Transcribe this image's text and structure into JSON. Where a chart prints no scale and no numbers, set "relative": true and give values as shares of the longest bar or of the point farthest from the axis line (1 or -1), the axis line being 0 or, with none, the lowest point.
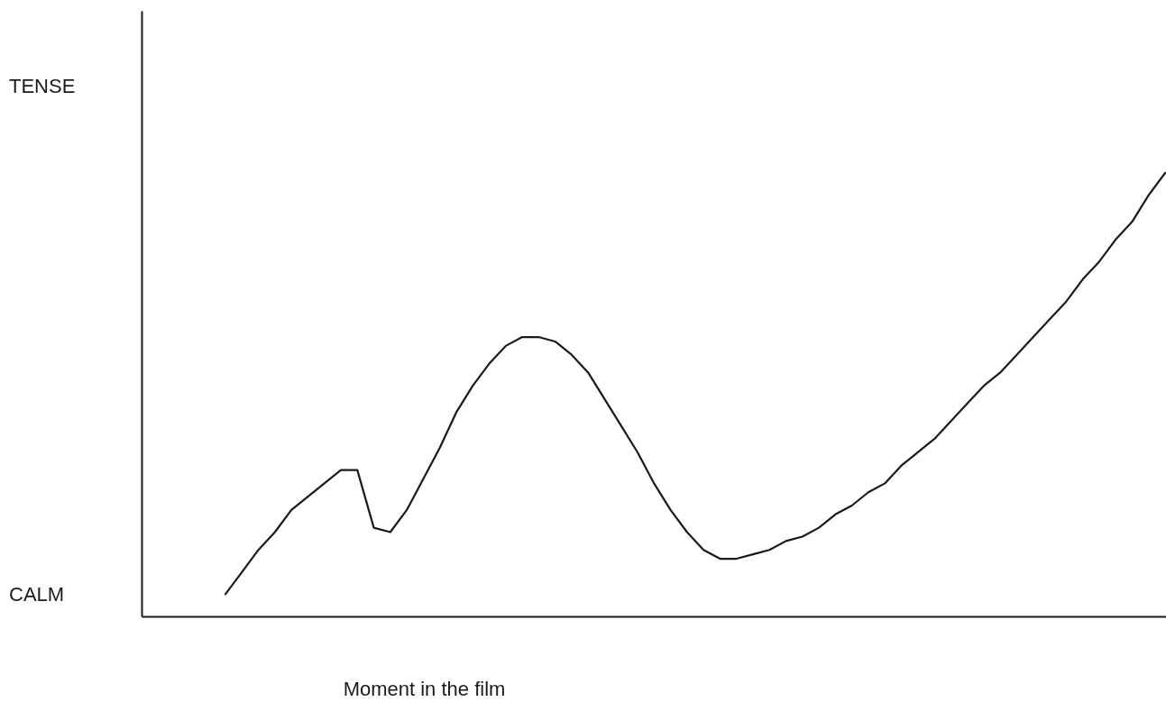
{
  "chart_data": {
    "type": "line",
    "relative": true,
    "xlabel": "Moment in the film",
    "annotations": [
      "TENSE",
      "CALM"
    ],
    "categories": [
      null,
      null,
      null,
      null,
      null,
      null,
      null,
      null,
      null,
      null,
      null,
      null,
      null,
      null,
      null,
      null,
      null,
      null,
      null,
      null,
      null,
      null,
      null,
      null,
      null,
      null,
      null,
      null,
      null,
      null,
      null,
      null,
      null,
      null,
      null,
      null,
      null,
      null,
      null,
      null,
      null,
      null,
      null,
      null,
      null,
      null,
      null,
      null,
      null,
      null,
      null,
      null,
      null,
      null,
      null,
      null,
      null,
      null
    ],
    "values": [
      0.05,
      0.1,
      0.15,
      0.19,
      0.24,
      0.27,
      0.3,
      0.33,
      0.33,
      0.2,
      0.19,
      0.24,
      0.31,
      0.38,
      0.46,
      0.52,
      0.57,
      0.61,
      0.63,
      0.63,
      0.62,
      0.59,
      0.55,
      0.49,
      0.43,
      0.37,
      0.3,
      0.24,
      0.19,
      0.15,
      0.13,
      0.13,
      0.14,
      0.15,
      0.17,
      0.18,
      0.2,
      0.23,
      0.25,
      0.28,
      0.3,
      0.34,
      0.37,
      0.4,
      0.44,
      0.48,
      0.52,
      0.55,
      0.59,
      0.63,
      0.67,
      0.71,
      0.76,
      0.8,
      0.85,
      0.89,
      0.95,
      1.0
    ],
    "color": "#1a1a1a"
  }
}
